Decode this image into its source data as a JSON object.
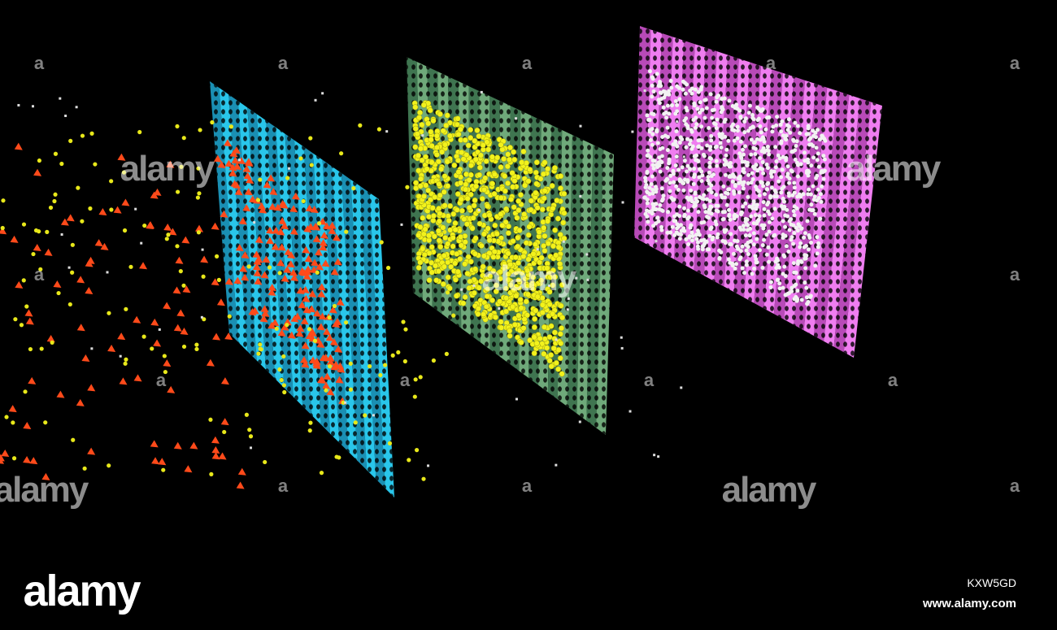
{
  "watermark": {
    "logo": "alamy",
    "mark": "a",
    "image_id": "KXW5GD",
    "url": "www.alamy.com"
  }
}
